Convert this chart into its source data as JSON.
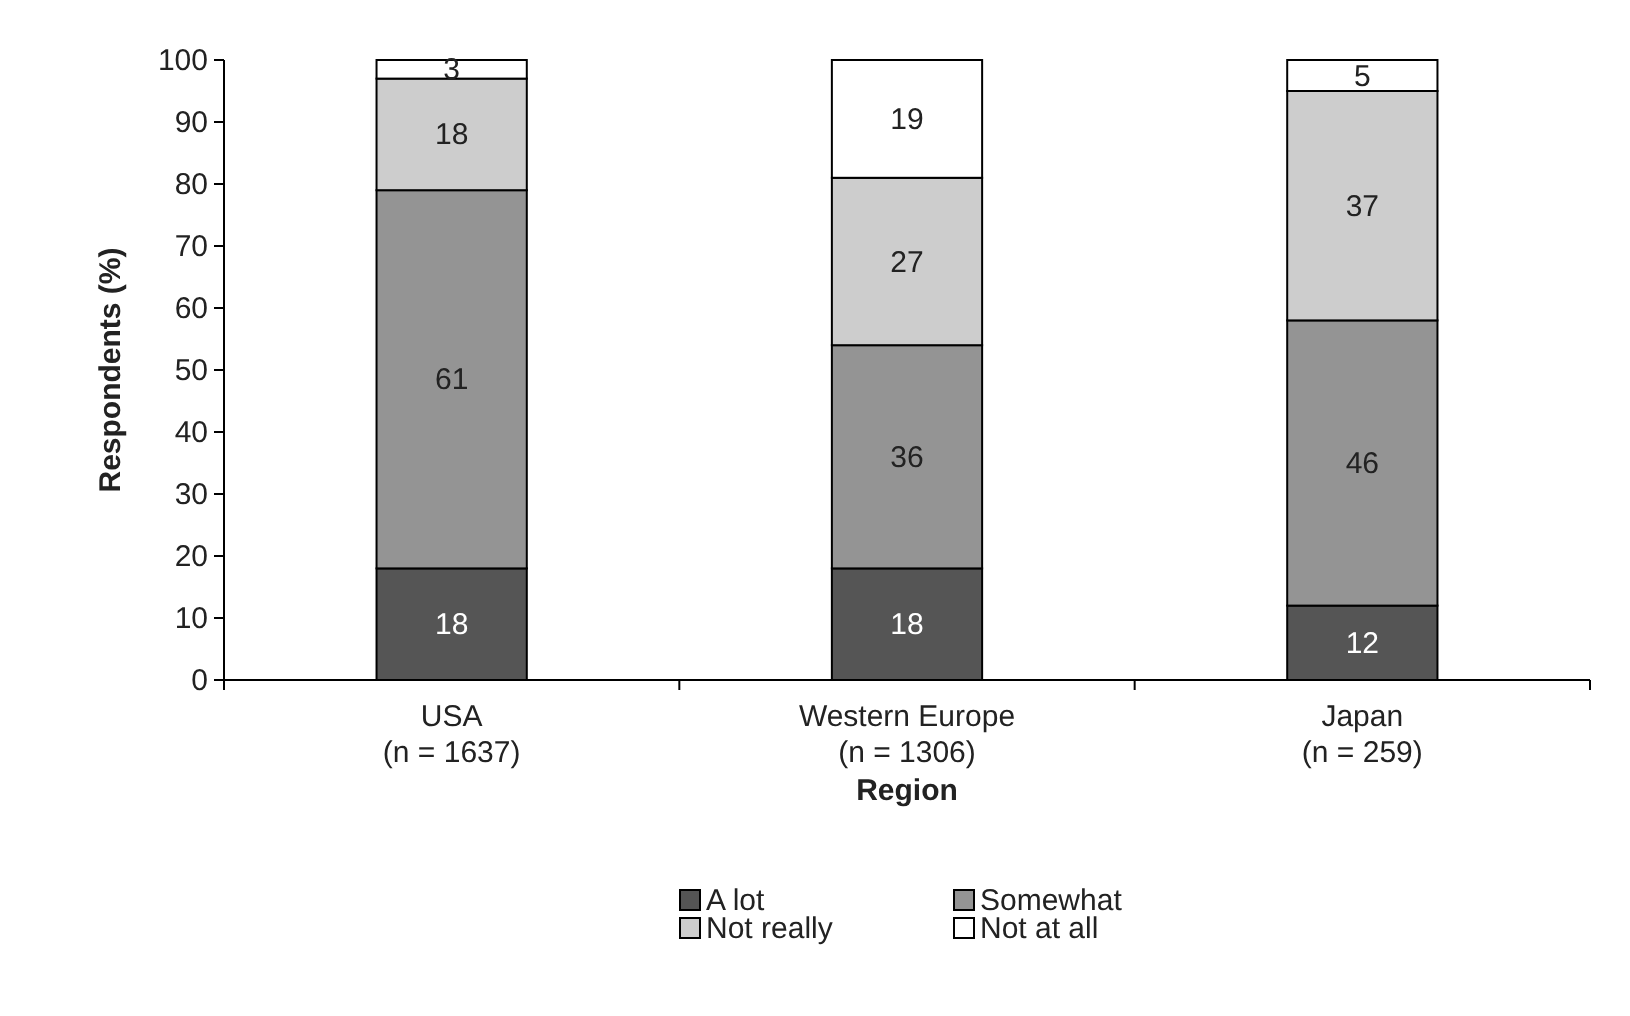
{
  "chart_data": {
    "type": "bar",
    "stacked": true,
    "xlabel": "Region",
    "ylabel": "Respondents (%)",
    "categories": [
      "USA\n(n = 1637)",
      "Western Europe\n(n = 1306)",
      "Japan\n(n = 259)"
    ],
    "series": [
      {
        "name": "A lot",
        "color": "#555555",
        "values": [
          18,
          18,
          12
        ]
      },
      {
        "name": "Somewhat",
        "color": "#949494",
        "values": [
          61,
          36,
          46
        ]
      },
      {
        "name": "Not really",
        "color": "#cdcdcd",
        "values": [
          18,
          27,
          37
        ]
      },
      {
        "name": "Not at all",
        "color": "#ffffff",
        "values": [
          3,
          19,
          5
        ]
      }
    ],
    "ylim": [
      0,
      100
    ],
    "yticks": [
      0,
      10,
      20,
      30,
      40,
      50,
      60,
      70,
      80,
      90,
      100
    ],
    "grid": false,
    "legend": "bottom",
    "data_labels": true
  }
}
